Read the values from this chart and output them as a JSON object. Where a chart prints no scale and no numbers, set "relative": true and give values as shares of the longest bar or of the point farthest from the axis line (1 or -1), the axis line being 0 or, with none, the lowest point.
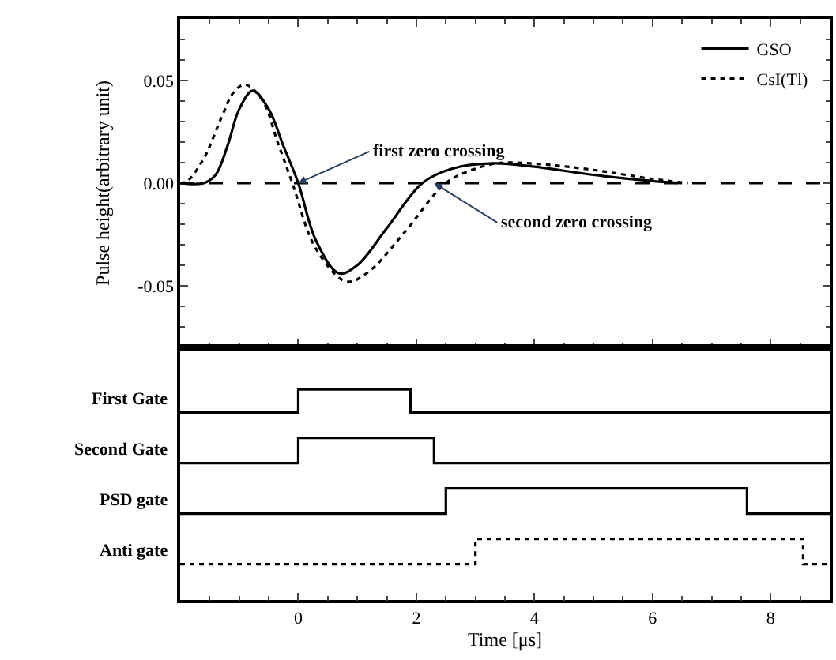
{
  "chart_data": [
    {
      "type": "line",
      "ylabel": "Pulse height(arbitrary unit)",
      "xlim": [
        -2,
        9
      ],
      "xticks": [
        0,
        2,
        4,
        6,
        8
      ],
      "ylim": [
        -0.08,
        0.08
      ],
      "yticks": [
        {
          "value": 0.05,
          "label": "0.05"
        },
        {
          "value": 0,
          "label": "0.00"
        },
        {
          "value": -0.05,
          "label": "-0.05"
        }
      ],
      "tick_labels": "y",
      "grid": false,
      "legend": "top right",
      "marker": "none",
      "series": [
        {
          "name": "GSO",
          "color": "#000000",
          "line_style": "solid",
          "x": [
            -2,
            -1.6,
            -1.4,
            -1.2,
            -1.0,
            -0.77,
            -0.5,
            -0.25,
            0,
            0.3,
            0.69,
            1.0,
            1.5,
            2.1,
            2.6,
            3.3,
            4.0,
            5.0,
            6.0,
            6.5
          ],
          "values": [
            0,
            0,
            0.004,
            0.018,
            0.036,
            0.045,
            0.036,
            0.018,
            0,
            -0.028,
            -0.044,
            -0.04,
            -0.022,
            0,
            0.007,
            0.0096,
            0.008,
            0.004,
            0.001,
            0
          ]
        },
        {
          "name": "CsI(Tl)",
          "color": "#000000",
          "line_style": "dotted",
          "x": [
            -2,
            -1.88,
            -1.6,
            -1.3,
            -1.1,
            -0.9,
            -0.6,
            -0.35,
            -0.1,
            0.3,
            0.82,
            1.2,
            1.8,
            2.5,
            3.0,
            3.42,
            4.2,
            5.1,
            6.0,
            6.6
          ],
          "values": [
            0,
            0.001,
            0.012,
            0.032,
            0.044,
            0.048,
            0.04,
            0.02,
            0,
            -0.032,
            -0.048,
            -0.043,
            -0.024,
            0,
            0.007,
            0.0098,
            0.009,
            0.006,
            0.002,
            0
          ]
        }
      ],
      "ref_lines": [
        {
          "axis": "y",
          "value": 0,
          "color": "#000000",
          "line_style": "dashed"
        }
      ],
      "annotations": [
        {
          "text": "first zero crossing",
          "x": 0,
          "y": 0
        },
        {
          "text": "second zero crossing",
          "x": 2.3,
          "y": 0
        }
      ]
    },
    {
      "type": "step",
      "relative": true,
      "xlabel": "Time [μs]",
      "xlim": [
        -2,
        9
      ],
      "xticks": [
        0,
        2,
        4,
        6,
        8
      ],
      "tick_labels": "x",
      "grid": false,
      "marker": "none",
      "series": [
        {
          "name": "First Gate",
          "color": "#000000",
          "line_style": "solid",
          "x": [
            -2,
            0,
            1.9,
            9
          ],
          "values": [
            0.89,
            1.0,
            0.89,
            0.89
          ]
        },
        {
          "name": "Second Gate",
          "color": "#000000",
          "line_style": "solid",
          "x": [
            -2,
            0,
            2.3,
            9
          ],
          "values": [
            0.65,
            0.77,
            0.65,
            0.65
          ]
        },
        {
          "name": "PSD gate",
          "color": "#000000",
          "line_style": "solid",
          "x": [
            -2,
            2.5,
            7.6,
            9
          ],
          "values": [
            0.41,
            0.53,
            0.41,
            0.41
          ]
        },
        {
          "name": "Anti gate",
          "color": "#000000",
          "line_style": "dotted",
          "x": [
            -2,
            3.0,
            8.55,
            9
          ],
          "values": [
            0.17,
            0.29,
            0.17,
            0.17
          ]
        }
      ]
    }
  ]
}
